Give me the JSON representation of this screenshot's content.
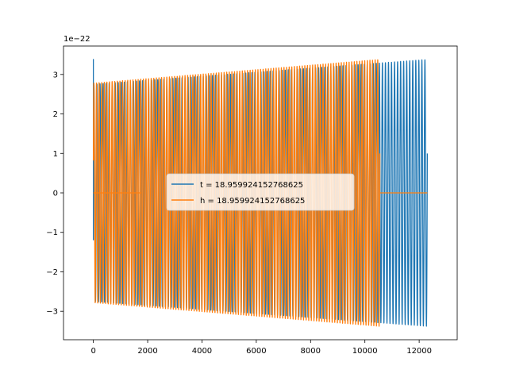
{
  "chart_data": {
    "type": "line",
    "title": "",
    "xlabel": "",
    "ylabel": "",
    "y_offset_label": "1e−22",
    "xlim": [
      -1100,
      13400
    ],
    "ylim": [
      -3.72,
      3.72
    ],
    "x_ticks": [
      0,
      2000,
      4000,
      6000,
      8000,
      10000,
      12000
    ],
    "x_tick_labels": [
      "0",
      "2000",
      "4000",
      "6000",
      "8000",
      "10000",
      "12000"
    ],
    "y_ticks": [
      -3,
      -2,
      -1,
      0,
      1,
      2,
      3
    ],
    "y_tick_labels": [
      "−3",
      "−2",
      "−1",
      "0",
      "1",
      "2",
      "3"
    ],
    "grid": false,
    "legend_position": "center",
    "series": [
      {
        "name": "t = 18.959924152768625",
        "color": "#1f77b4",
        "x_start": 0,
        "x_end": 12300,
        "amplitude_start": 2.75,
        "amplitude_end": 3.38,
        "cycles": 110,
        "initial_spike": 3.38
      },
      {
        "name": "h = 18.959924152768625",
        "color": "#ff7f0e",
        "x_start": 0,
        "x_end": 10550,
        "amplitude_start": 2.78,
        "amplitude_end": 3.38,
        "cycles": 110,
        "flat_segments": [
          [
            0,
            1750
          ],
          [
            10550,
            12300
          ]
        ]
      }
    ]
  }
}
